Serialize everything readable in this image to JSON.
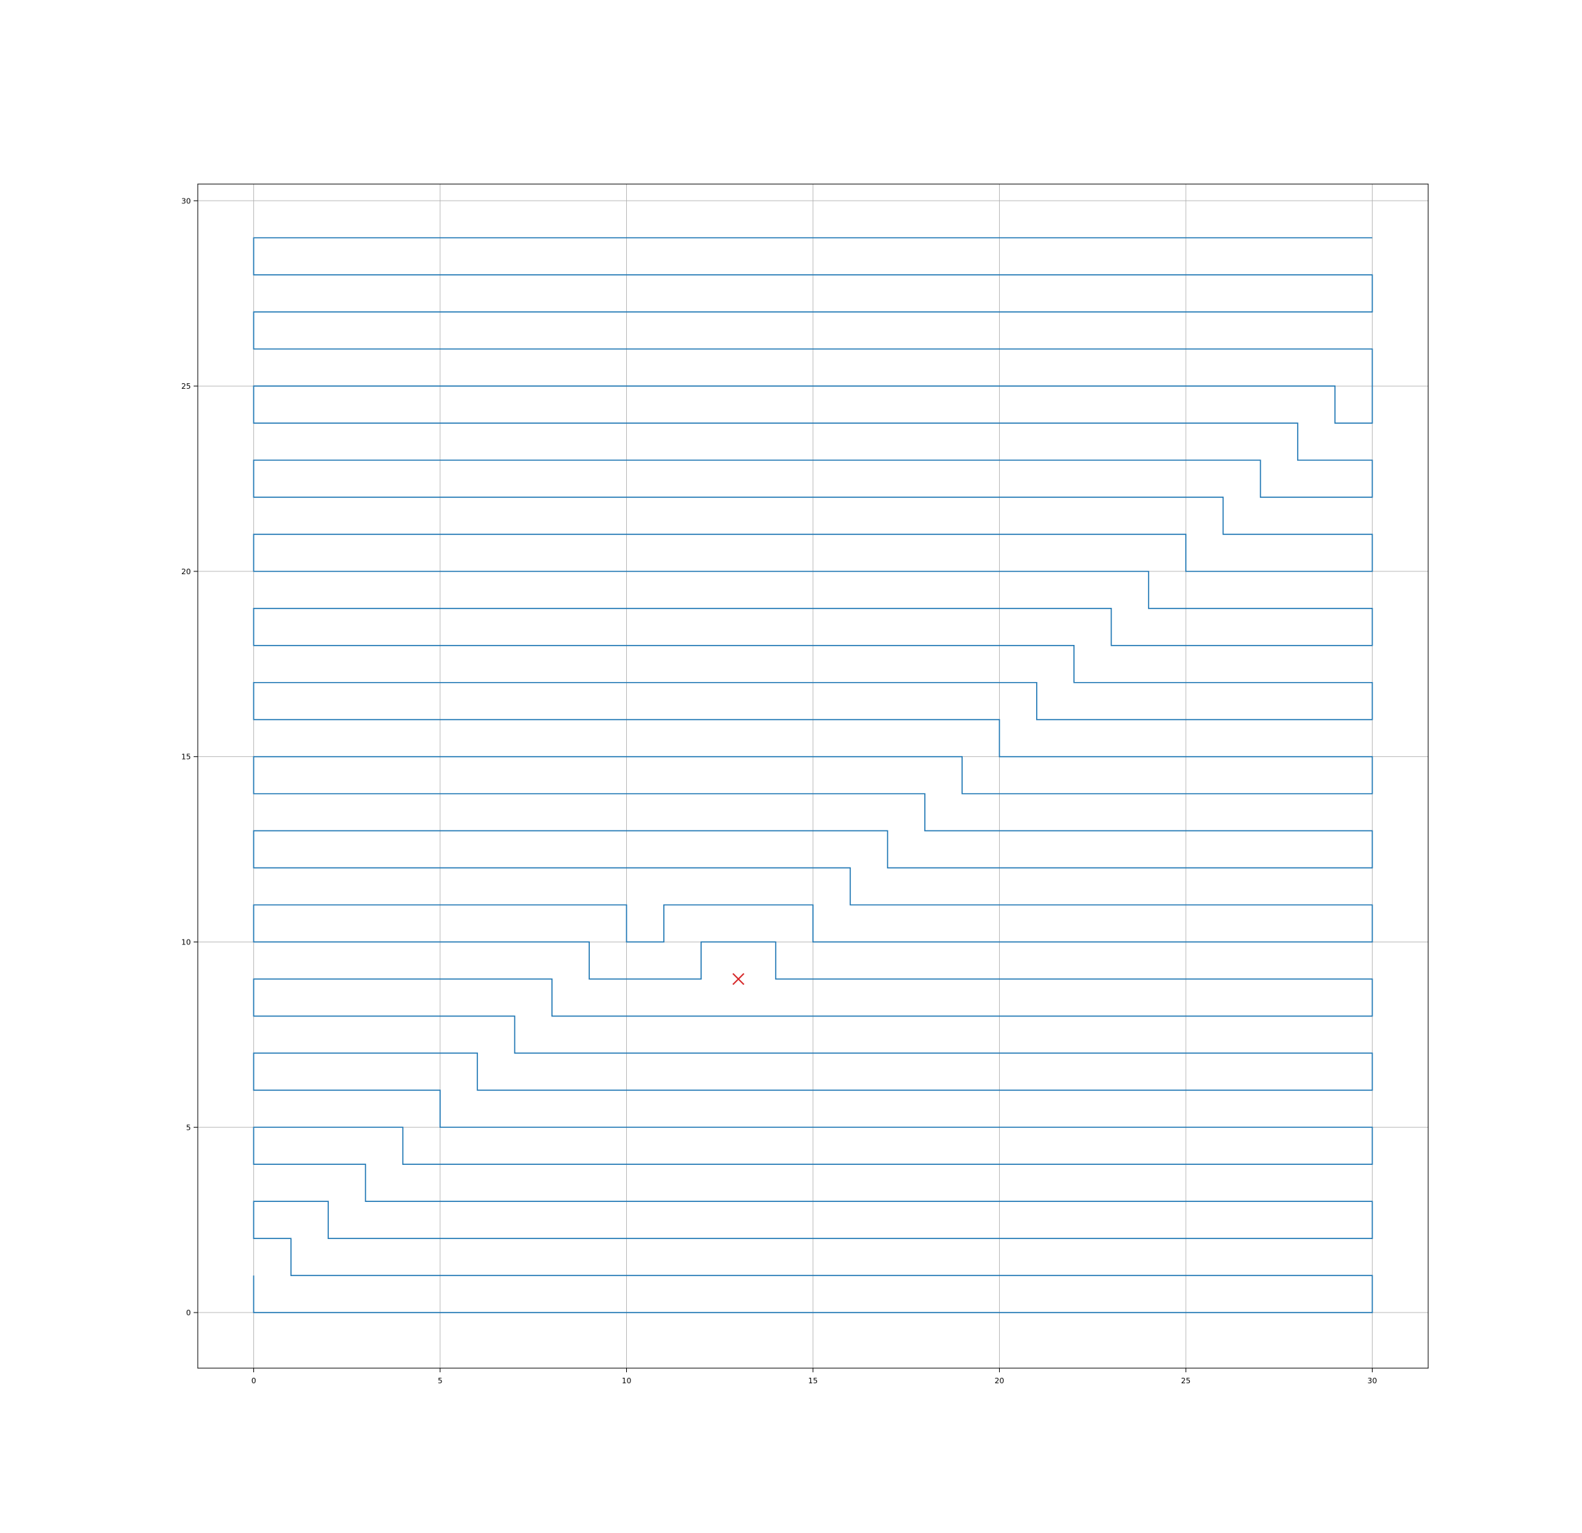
{
  "chart_data": {
    "type": "line",
    "title": "",
    "xlabel": "",
    "ylabel": "",
    "xlim": [
      -1.5,
      31.5
    ],
    "ylim": [
      -1.5,
      30.45
    ],
    "x_ticks": [
      0,
      5,
      10,
      15,
      20,
      25,
      30
    ],
    "y_ticks": [
      0,
      5,
      10,
      15,
      20,
      25,
      30
    ],
    "grid": true,
    "legend": "none",
    "colors": {
      "path": "#1f77b4",
      "marker": "#d62728"
    },
    "series": [
      {
        "kind": "line",
        "x": [
          0,
          0,
          30,
          30,
          1,
          1,
          0,
          0,
          2,
          2,
          30,
          30,
          3,
          3,
          0,
          0,
          4,
          4,
          30,
          30,
          5,
          5,
          0,
          0,
          6,
          6,
          30,
          30,
          7,
          7,
          0,
          0,
          8,
          8,
          30,
          30,
          14,
          14,
          12,
          12,
          9,
          9,
          0,
          0,
          10,
          10,
          11,
          11,
          15,
          15,
          30,
          30,
          16,
          16,
          0,
          0,
          17,
          17,
          30,
          30,
          18,
          18,
          0,
          0,
          19,
          19,
          30,
          30,
          20,
          20,
          0,
          0,
          21,
          21,
          30,
          30,
          22,
          22,
          0,
          0,
          23,
          23,
          30,
          30,
          24,
          24,
          0,
          0,
          25,
          25,
          30,
          30,
          26,
          26,
          0,
          0,
          27,
          27,
          30,
          30,
          28,
          28,
          0,
          0,
          29,
          29,
          30,
          30,
          0,
          0,
          30,
          30,
          0,
          0,
          30
        ],
        "y": [
          1,
          0,
          0,
          1,
          1,
          2,
          2,
          3,
          3,
          2,
          2,
          3,
          3,
          4,
          4,
          5,
          5,
          4,
          4,
          5,
          5,
          6,
          6,
          7,
          7,
          6,
          6,
          7,
          7,
          8,
          8,
          9,
          9,
          8,
          8,
          9,
          9,
          10,
          10,
          9,
          9,
          10,
          10,
          11,
          11,
          10,
          10,
          11,
          11,
          10,
          10,
          11,
          11,
          12,
          12,
          13,
          13,
          12,
          12,
          13,
          13,
          14,
          14,
          15,
          15,
          14,
          14,
          15,
          15,
          16,
          16,
          17,
          17,
          16,
          16,
          17,
          17,
          18,
          18,
          19,
          19,
          18,
          18,
          19,
          19,
          20,
          20,
          21,
          21,
          20,
          20,
          21,
          21,
          22,
          22,
          23,
          23,
          22,
          22,
          23,
          23,
          24,
          24,
          25,
          25,
          24,
          24,
          26,
          26,
          27,
          27,
          28,
          28,
          29,
          29
        ]
      },
      {
        "kind": "scatter",
        "marker": "x",
        "x": [
          13
        ],
        "y": [
          9
        ]
      }
    ]
  }
}
